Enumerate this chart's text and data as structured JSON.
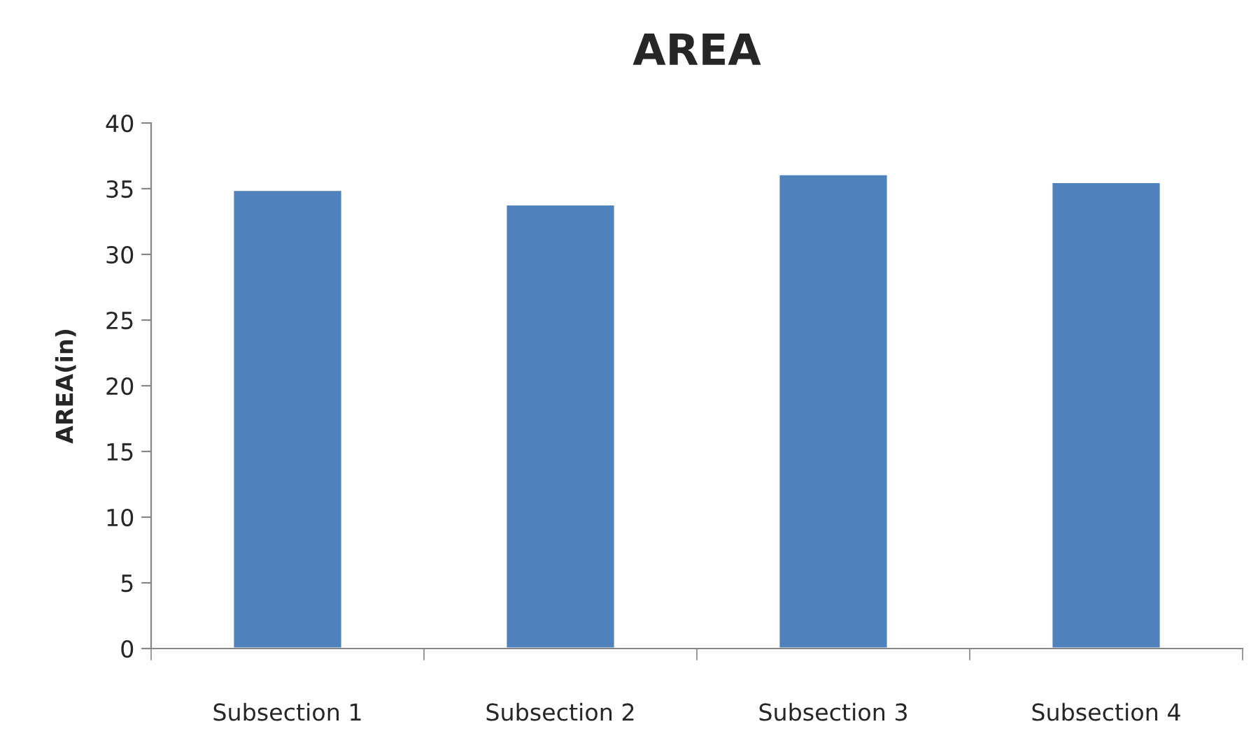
{
  "chart_data": {
    "type": "bar",
    "title": "AREA",
    "ylabel": "AREA(in)",
    "categories": [
      "Subsection 1",
      "Subsection 2",
      "Subsection 3",
      "Subsection 4"
    ],
    "values": [
      34.9,
      33.8,
      36.1,
      35.5
    ],
    "color": "#4f81bd",
    "ylim": [
      0,
      40
    ],
    "yticks": [
      0,
      5,
      10,
      15,
      20,
      25,
      30,
      35,
      40
    ],
    "grid": false
  }
}
